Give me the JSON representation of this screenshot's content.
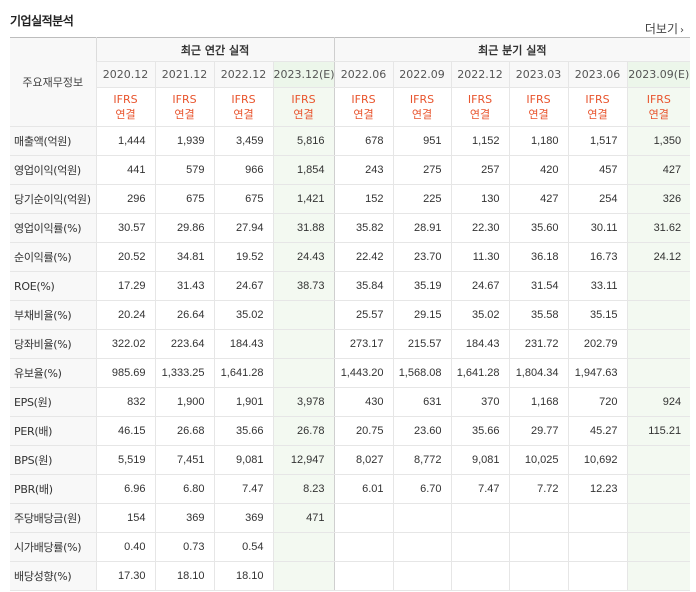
{
  "title": "기업실적분석",
  "more_label": "더보기",
  "header": {
    "row_header": "주요재무정보",
    "annual_label": "최근 연간 실적",
    "quarter_label": "최근 분기 실적",
    "periods": [
      "2020.12",
      "2021.12",
      "2022.12",
      "2023.12(E)",
      "2022.06",
      "2022.09",
      "2022.12",
      "2023.03",
      "2023.06",
      "2023.09(E)"
    ],
    "ifrs_top": "IFRS",
    "ifrs_bottom": "연결"
  },
  "rows": [
    {
      "label": "매출액(억원)",
      "values": [
        "1,444",
        "1,939",
        "3,459",
        "5,816",
        "678",
        "951",
        "1,152",
        "1,180",
        "1,517",
        "1,350"
      ]
    },
    {
      "label": "영업이익(억원)",
      "values": [
        "441",
        "579",
        "966",
        "1,854",
        "243",
        "275",
        "257",
        "420",
        "457",
        "427"
      ]
    },
    {
      "label": "당기순이익(억원)",
      "values": [
        "296",
        "675",
        "675",
        "1,421",
        "152",
        "225",
        "130",
        "427",
        "254",
        "326"
      ]
    },
    {
      "label": "영업이익률(%)",
      "values": [
        "30.57",
        "29.86",
        "27.94",
        "31.88",
        "35.82",
        "28.91",
        "22.30",
        "35.60",
        "30.11",
        "31.62"
      ]
    },
    {
      "label": "순이익률(%)",
      "values": [
        "20.52",
        "34.81",
        "19.52",
        "24.43",
        "22.42",
        "23.70",
        "11.30",
        "36.18",
        "16.73",
        "24.12"
      ]
    },
    {
      "label": "ROE(%)",
      "values": [
        "17.29",
        "31.43",
        "24.67",
        "38.73",
        "35.84",
        "35.19",
        "24.67",
        "31.54",
        "33.11",
        ""
      ]
    },
    {
      "label": "부채비율(%)",
      "values": [
        "20.24",
        "26.64",
        "35.02",
        "",
        "25.57",
        "29.15",
        "35.02",
        "35.58",
        "35.15",
        ""
      ]
    },
    {
      "label": "당좌비율(%)",
      "values": [
        "322.02",
        "223.64",
        "184.43",
        "",
        "273.17",
        "215.57",
        "184.43",
        "231.72",
        "202.79",
        ""
      ]
    },
    {
      "label": "유보율(%)",
      "values": [
        "985.69",
        "1,333.25",
        "1,641.28",
        "",
        "1,443.20",
        "1,568.08",
        "1,641.28",
        "1,804.34",
        "1,947.63",
        ""
      ]
    },
    {
      "label": "EPS(원)",
      "values": [
        "832",
        "1,900",
        "1,901",
        "3,978",
        "430",
        "631",
        "370",
        "1,168",
        "720",
        "924"
      ]
    },
    {
      "label": "PER(배)",
      "values": [
        "46.15",
        "26.68",
        "35.66",
        "26.78",
        "20.75",
        "23.60",
        "35.66",
        "29.77",
        "45.27",
        "115.21"
      ]
    },
    {
      "label": "BPS(원)",
      "values": [
        "5,519",
        "7,451",
        "9,081",
        "12,947",
        "8,027",
        "8,772",
        "9,081",
        "10,025",
        "10,692",
        ""
      ]
    },
    {
      "label": "PBR(배)",
      "values": [
        "6.96",
        "6.80",
        "7.47",
        "8.23",
        "6.01",
        "6.70",
        "7.47",
        "7.72",
        "12.23",
        ""
      ]
    },
    {
      "label": "주당배당금(원)",
      "values": [
        "154",
        "369",
        "369",
        "471",
        "",
        "",
        "",
        "",
        "",
        ""
      ]
    },
    {
      "label": "시가배당률(%)",
      "values": [
        "0.40",
        "0.73",
        "0.54",
        "",
        "",
        "",
        "",
        "",
        "",
        ""
      ]
    },
    {
      "label": "배당성향(%)",
      "values": [
        "17.30",
        "18.10",
        "18.10",
        "",
        "",
        "",
        "",
        "",
        "",
        ""
      ]
    }
  ]
}
